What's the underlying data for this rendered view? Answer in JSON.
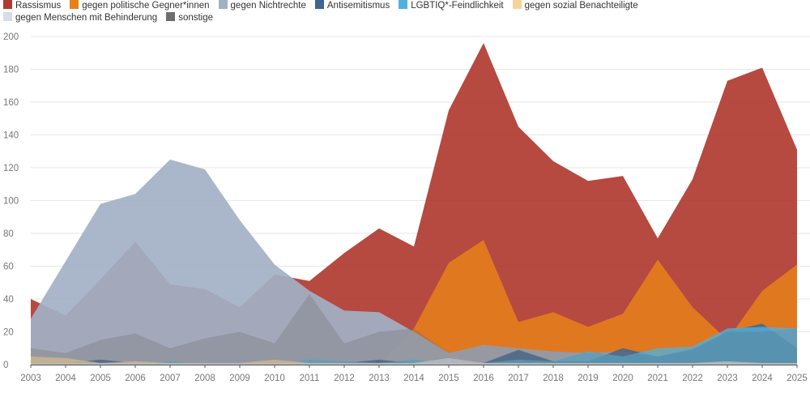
{
  "chart_data": {
    "type": "area",
    "title": "",
    "xlabel": "",
    "ylabel": "",
    "grid": true,
    "legend_position": "top-left",
    "ylim": [
      0,
      200
    ],
    "yticks": [
      0,
      20,
      40,
      60,
      80,
      100,
      120,
      140,
      160,
      180,
      200
    ],
    "x": [
      "2003",
      "2004",
      "2005",
      "2006",
      "2007",
      "2008",
      "2009",
      "2010",
      "2011",
      "2012",
      "2013",
      "2014",
      "2015",
      "2016",
      "2017",
      "2018",
      "2019",
      "2020",
      "2021",
      "2022",
      "2023",
      "2024",
      "2025"
    ],
    "series": [
      {
        "name": "Rassismus",
        "color": "#b03a30",
        "values": [
          40,
          30,
          52,
          75,
          49,
          46,
          35,
          55,
          51,
          68,
          83,
          72,
          155,
          196,
          145,
          124,
          112,
          115,
          77,
          113,
          173,
          181,
          131
        ]
      },
      {
        "name": "gegen politische Gegner*innen",
        "color": "#e8801a",
        "values": [
          0,
          0,
          0,
          0,
          0,
          0,
          0,
          0,
          0,
          0,
          0,
          22,
          62,
          76,
          26,
          32,
          23,
          31,
          64,
          35,
          15,
          45,
          61
        ]
      },
      {
        "name": "gegen Nichtrechte",
        "color": "#a3b1c5",
        "values": [
          28,
          63,
          98,
          104,
          125,
          119,
          88,
          61,
          45,
          33,
          32,
          20,
          7,
          12,
          10,
          8,
          7,
          8,
          5,
          10,
          20,
          20,
          22
        ]
      },
      {
        "name": "Antisemitismus",
        "color": "#3f6591",
        "values": [
          1,
          1,
          3,
          1,
          1,
          1,
          1,
          1,
          1,
          1,
          3,
          1,
          1,
          1,
          9,
          2,
          2,
          10,
          5,
          9,
          20,
          25,
          10
        ]
      },
      {
        "name": "LGBTIQ*-Feindlichkeit",
        "color": "#4fb2dd",
        "values": [
          0,
          0,
          0,
          0,
          2,
          0,
          0,
          0,
          3,
          2,
          1,
          3,
          1,
          1,
          3,
          2,
          8,
          5,
          10,
          11,
          22,
          23,
          22
        ]
      },
      {
        "name": "gegen sozial Benachteiligte",
        "color": "#f6d39a",
        "values": [
          5,
          4,
          1,
          2,
          1,
          1,
          1,
          3,
          1,
          1,
          1,
          1,
          1,
          1,
          1,
          1,
          1,
          1,
          1,
          1,
          1,
          1,
          1
        ]
      },
      {
        "name": "gegen Menschen mit Behinderung",
        "color": "#d7dde5",
        "values": [
          1,
          1,
          1,
          1,
          1,
          1,
          1,
          1,
          1,
          1,
          1,
          1,
          4,
          1,
          1,
          1,
          1,
          1,
          1,
          1,
          2,
          1,
          1
        ]
      },
      {
        "name": "sonstige",
        "color": "#6d6d6d",
        "values": [
          10,
          7,
          15,
          19,
          10,
          16,
          20,
          13,
          43,
          13,
          20,
          22,
          7,
          12,
          10,
          8,
          7,
          8,
          5,
          10,
          20,
          20,
          22
        ]
      }
    ]
  }
}
